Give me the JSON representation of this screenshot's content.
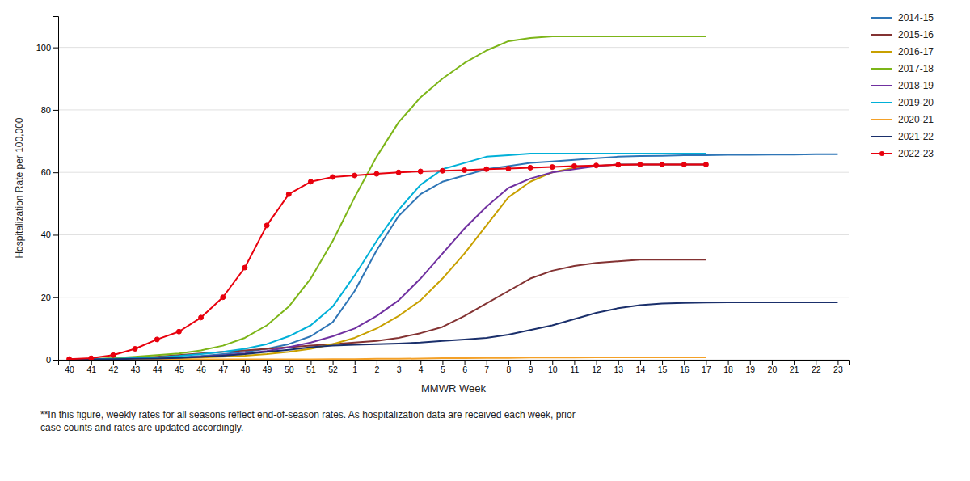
{
  "chart_data": {
    "type": "line",
    "xlabel": "MMWR Week",
    "ylabel": "Hospitalization Rate per 100,000",
    "annotations": [
      "**In this figure, weekly rates for all seasons reflect end-of-season rates. As hospitalization data are received each week, prior\ncase counts and rates are updated accordingly."
    ],
    "categories": [
      "40",
      "41",
      "42",
      "43",
      "44",
      "45",
      "46",
      "47",
      "48",
      "49",
      "50",
      "51",
      "52",
      "1",
      "2",
      "3",
      "4",
      "5",
      "6",
      "7",
      "8",
      "9",
      "10",
      "11",
      "12",
      "13",
      "14",
      "15",
      "16",
      "17",
      "18",
      "19",
      "20",
      "21",
      "22",
      "23"
    ],
    "ylim": [
      0,
      110
    ],
    "yticks": [
      0,
      20,
      40,
      60,
      80,
      100
    ],
    "grid": true,
    "legend": "right",
    "series": [
      {
        "name": "2014-15",
        "color": "#2E75B6",
        "values": [
          0.1,
          0.1,
          0.2,
          0.3,
          0.5,
          0.8,
          1.2,
          1.8,
          2.5,
          3.5,
          5.0,
          7.5,
          12,
          22,
          35,
          46,
          53,
          57,
          59,
          61,
          62,
          63,
          63.5,
          64,
          64.5,
          65,
          65.2,
          65.3,
          65.5,
          65.5,
          65.6,
          65.6,
          65.7,
          65.7,
          65.8,
          65.8
        ]
      },
      {
        "name": "2015-16",
        "color": "#833232",
        "values": [
          0.1,
          0.2,
          0.3,
          0.5,
          1.0,
          1.5,
          2.0,
          2.5,
          3.0,
          3.5,
          4.0,
          4.5,
          5.0,
          5.5,
          6.0,
          7.0,
          8.5,
          10.5,
          14,
          18,
          22,
          26,
          28.5,
          30,
          31,
          31.5,
          32,
          32,
          32,
          32,
          null,
          null,
          null,
          null,
          null,
          null
        ]
      },
      {
        "name": "2016-17",
        "color": "#C8A000",
        "values": [
          0.1,
          0.1,
          0.2,
          0.3,
          0.4,
          0.5,
          0.7,
          1.0,
          1.3,
          1.8,
          2.5,
          3.5,
          5.0,
          7.0,
          10,
          14,
          19,
          26,
          34,
          43,
          52,
          57,
          60,
          61.5,
          62,
          62.5,
          62.5,
          62.5,
          62.5,
          62.5,
          null,
          null,
          null,
          null,
          null,
          null
        ]
      },
      {
        "name": "2017-18",
        "color": "#7CB518",
        "values": [
          0.1,
          0.2,
          0.5,
          1.0,
          1.5,
          2.0,
          3.0,
          4.5,
          7.0,
          11,
          17,
          26,
          38,
          52,
          65,
          76,
          84,
          90,
          95,
          99,
          102,
          103,
          103.5,
          103.5,
          103.5,
          103.5,
          103.5,
          103.5,
          103.5,
          103.5,
          null,
          null,
          null,
          null,
          null,
          null
        ]
      },
      {
        "name": "2018-19",
        "color": "#7030A0",
        "values": [
          0.1,
          0.1,
          0.2,
          0.3,
          0.5,
          0.7,
          1.0,
          1.4,
          2.0,
          2.8,
          4.0,
          5.5,
          7.5,
          10,
          14,
          19,
          26,
          34,
          42,
          49,
          55,
          58,
          60,
          61,
          62,
          62.5,
          62.5,
          62.5,
          62.5,
          62.5,
          null,
          null,
          null,
          null,
          null,
          null
        ]
      },
      {
        "name": "2019-20",
        "color": "#00B0D8",
        "values": [
          0.1,
          0.2,
          0.3,
          0.5,
          0.8,
          1.2,
          1.8,
          2.5,
          3.5,
          5.0,
          7.5,
          11,
          17,
          27,
          38,
          48,
          56,
          61,
          63,
          65,
          65.5,
          66,
          66,
          66,
          66,
          66,
          66,
          66,
          66,
          66,
          null,
          null,
          null,
          null,
          null,
          null
        ]
      },
      {
        "name": "2020-21",
        "color": "#F4A128",
        "values": [
          0.0,
          0.0,
          0.0,
          0.1,
          0.1,
          0.1,
          0.1,
          0.1,
          0.1,
          0.1,
          0.1,
          0.1,
          0.2,
          0.2,
          0.3,
          0.3,
          0.4,
          0.5,
          0.5,
          0.6,
          0.6,
          0.7,
          0.7,
          0.7,
          0.8,
          0.8,
          0.8,
          0.8,
          0.8,
          0.8,
          null,
          null,
          null,
          null,
          null,
          null
        ]
      },
      {
        "name": "2021-22",
        "color": "#1A2F6B",
        "values": [
          0.1,
          0.1,
          0.2,
          0.3,
          0.4,
          0.6,
          0.9,
          1.3,
          1.8,
          2.5,
          3.2,
          4.0,
          4.5,
          4.8,
          5.0,
          5.2,
          5.5,
          6.0,
          6.5,
          7.0,
          8.0,
          9.5,
          11,
          13,
          15,
          16.5,
          17.5,
          18,
          18.2,
          18.3,
          18.4,
          18.4,
          18.4,
          18.4,
          18.4,
          18.4
        ]
      },
      {
        "name": "2022-23",
        "color": "#E8000D",
        "marker": "circle",
        "values": [
          0.2,
          0.5,
          1.5,
          3.5,
          6.5,
          9.0,
          13.5,
          20.0,
          29.5,
          43.0,
          53.0,
          57.0,
          58.5,
          59.0,
          59.5,
          60.0,
          60.3,
          60.5,
          60.7,
          61.0,
          61.2,
          61.5,
          61.7,
          62.0,
          62.2,
          62.4,
          62.5,
          62.5,
          62.5,
          62.5,
          null,
          null,
          null,
          null,
          null,
          null
        ]
      }
    ]
  }
}
